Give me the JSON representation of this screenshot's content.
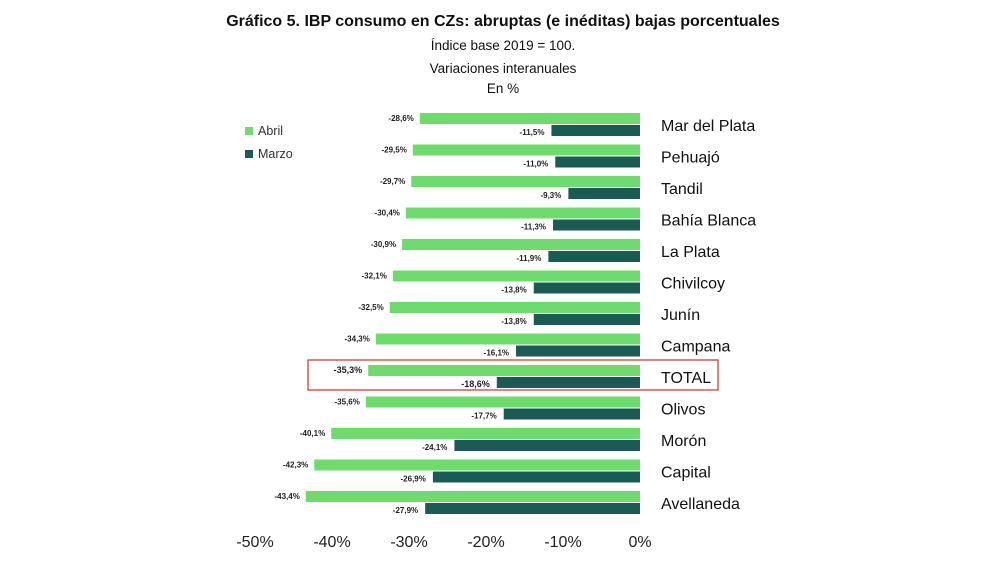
{
  "title": "Gráfico 5. IBP consumo en CZs: abruptas (e inéditas) bajas porcentuales",
  "subtitle_lines": [
    "Índice base 2019 = 100.",
    "Variaciones interanuales",
    "En %"
  ],
  "chart_data": {
    "type": "bar",
    "orientation": "horizontal",
    "categories": [
      "Mar del Plata",
      "Pehuajó",
      "Tandil",
      "Bahía Blanca",
      "La Plata",
      "Chivilcoy",
      "Junín",
      "Campana",
      "TOTAL",
      "Olivos",
      "Morón",
      "Capital",
      "Avellaneda"
    ],
    "series": [
      {
        "name": "Abril",
        "color": "#6ddc6d",
        "values": [
          -28.6,
          -29.5,
          -29.7,
          -30.4,
          -30.9,
          -32.1,
          -32.5,
          -34.3,
          -35.3,
          -35.6,
          -40.1,
          -42.3,
          -43.4
        ],
        "labels": [
          "-28,6%",
          "-29,5%",
          "-29,7%",
          "-30,4%",
          "-30,9%",
          "-32,1%",
          "-32,5%",
          "-34,3%",
          "-35,3%",
          "-35,6%",
          "-40,1%",
          "-42,3%",
          "-43,4%"
        ]
      },
      {
        "name": "Marzo",
        "color": "#1a5c55",
        "values": [
          -11.5,
          -11.0,
          -9.3,
          -11.3,
          -11.9,
          -13.8,
          -13.8,
          -16.1,
          -18.6,
          -17.7,
          -24.1,
          -26.9,
          -27.9
        ],
        "labels": [
          "-11,5%",
          "-11,0%",
          "-9,3%",
          "-11,3%",
          "-11,9%",
          "-13,8%",
          "-13,8%",
          "-16,1%",
          "-18,6%",
          "-17,7%",
          "-24,1%",
          "-26,9%",
          "-27,9%"
        ]
      }
    ],
    "xlim": [
      -50,
      0
    ],
    "xticks": [
      -50,
      -40,
      -30,
      -20,
      -10,
      0
    ],
    "xtick_labels": [
      "-50%",
      "-40%",
      "-30%",
      "-20%",
      "-10%",
      "0%"
    ],
    "legend_position": "top-left",
    "highlighted_category": "TOTAL",
    "highlight_color": "#d63c3c",
    "grid": false
  }
}
